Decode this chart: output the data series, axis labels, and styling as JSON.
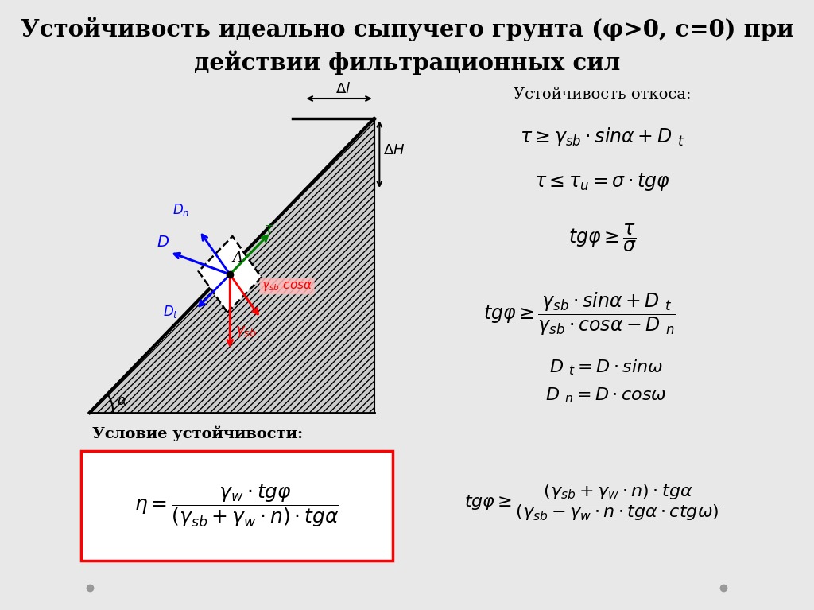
{
  "title_line1": "Устойчивость идеально сыпучего грунта (φ>0, c=0) при",
  "title_line2": "действии фильтрационных сил",
  "bg_color": "#e8e8e8",
  "stability_label": "Устойчивость откоса:",
  "condition_label": "Условие устойчивости:"
}
